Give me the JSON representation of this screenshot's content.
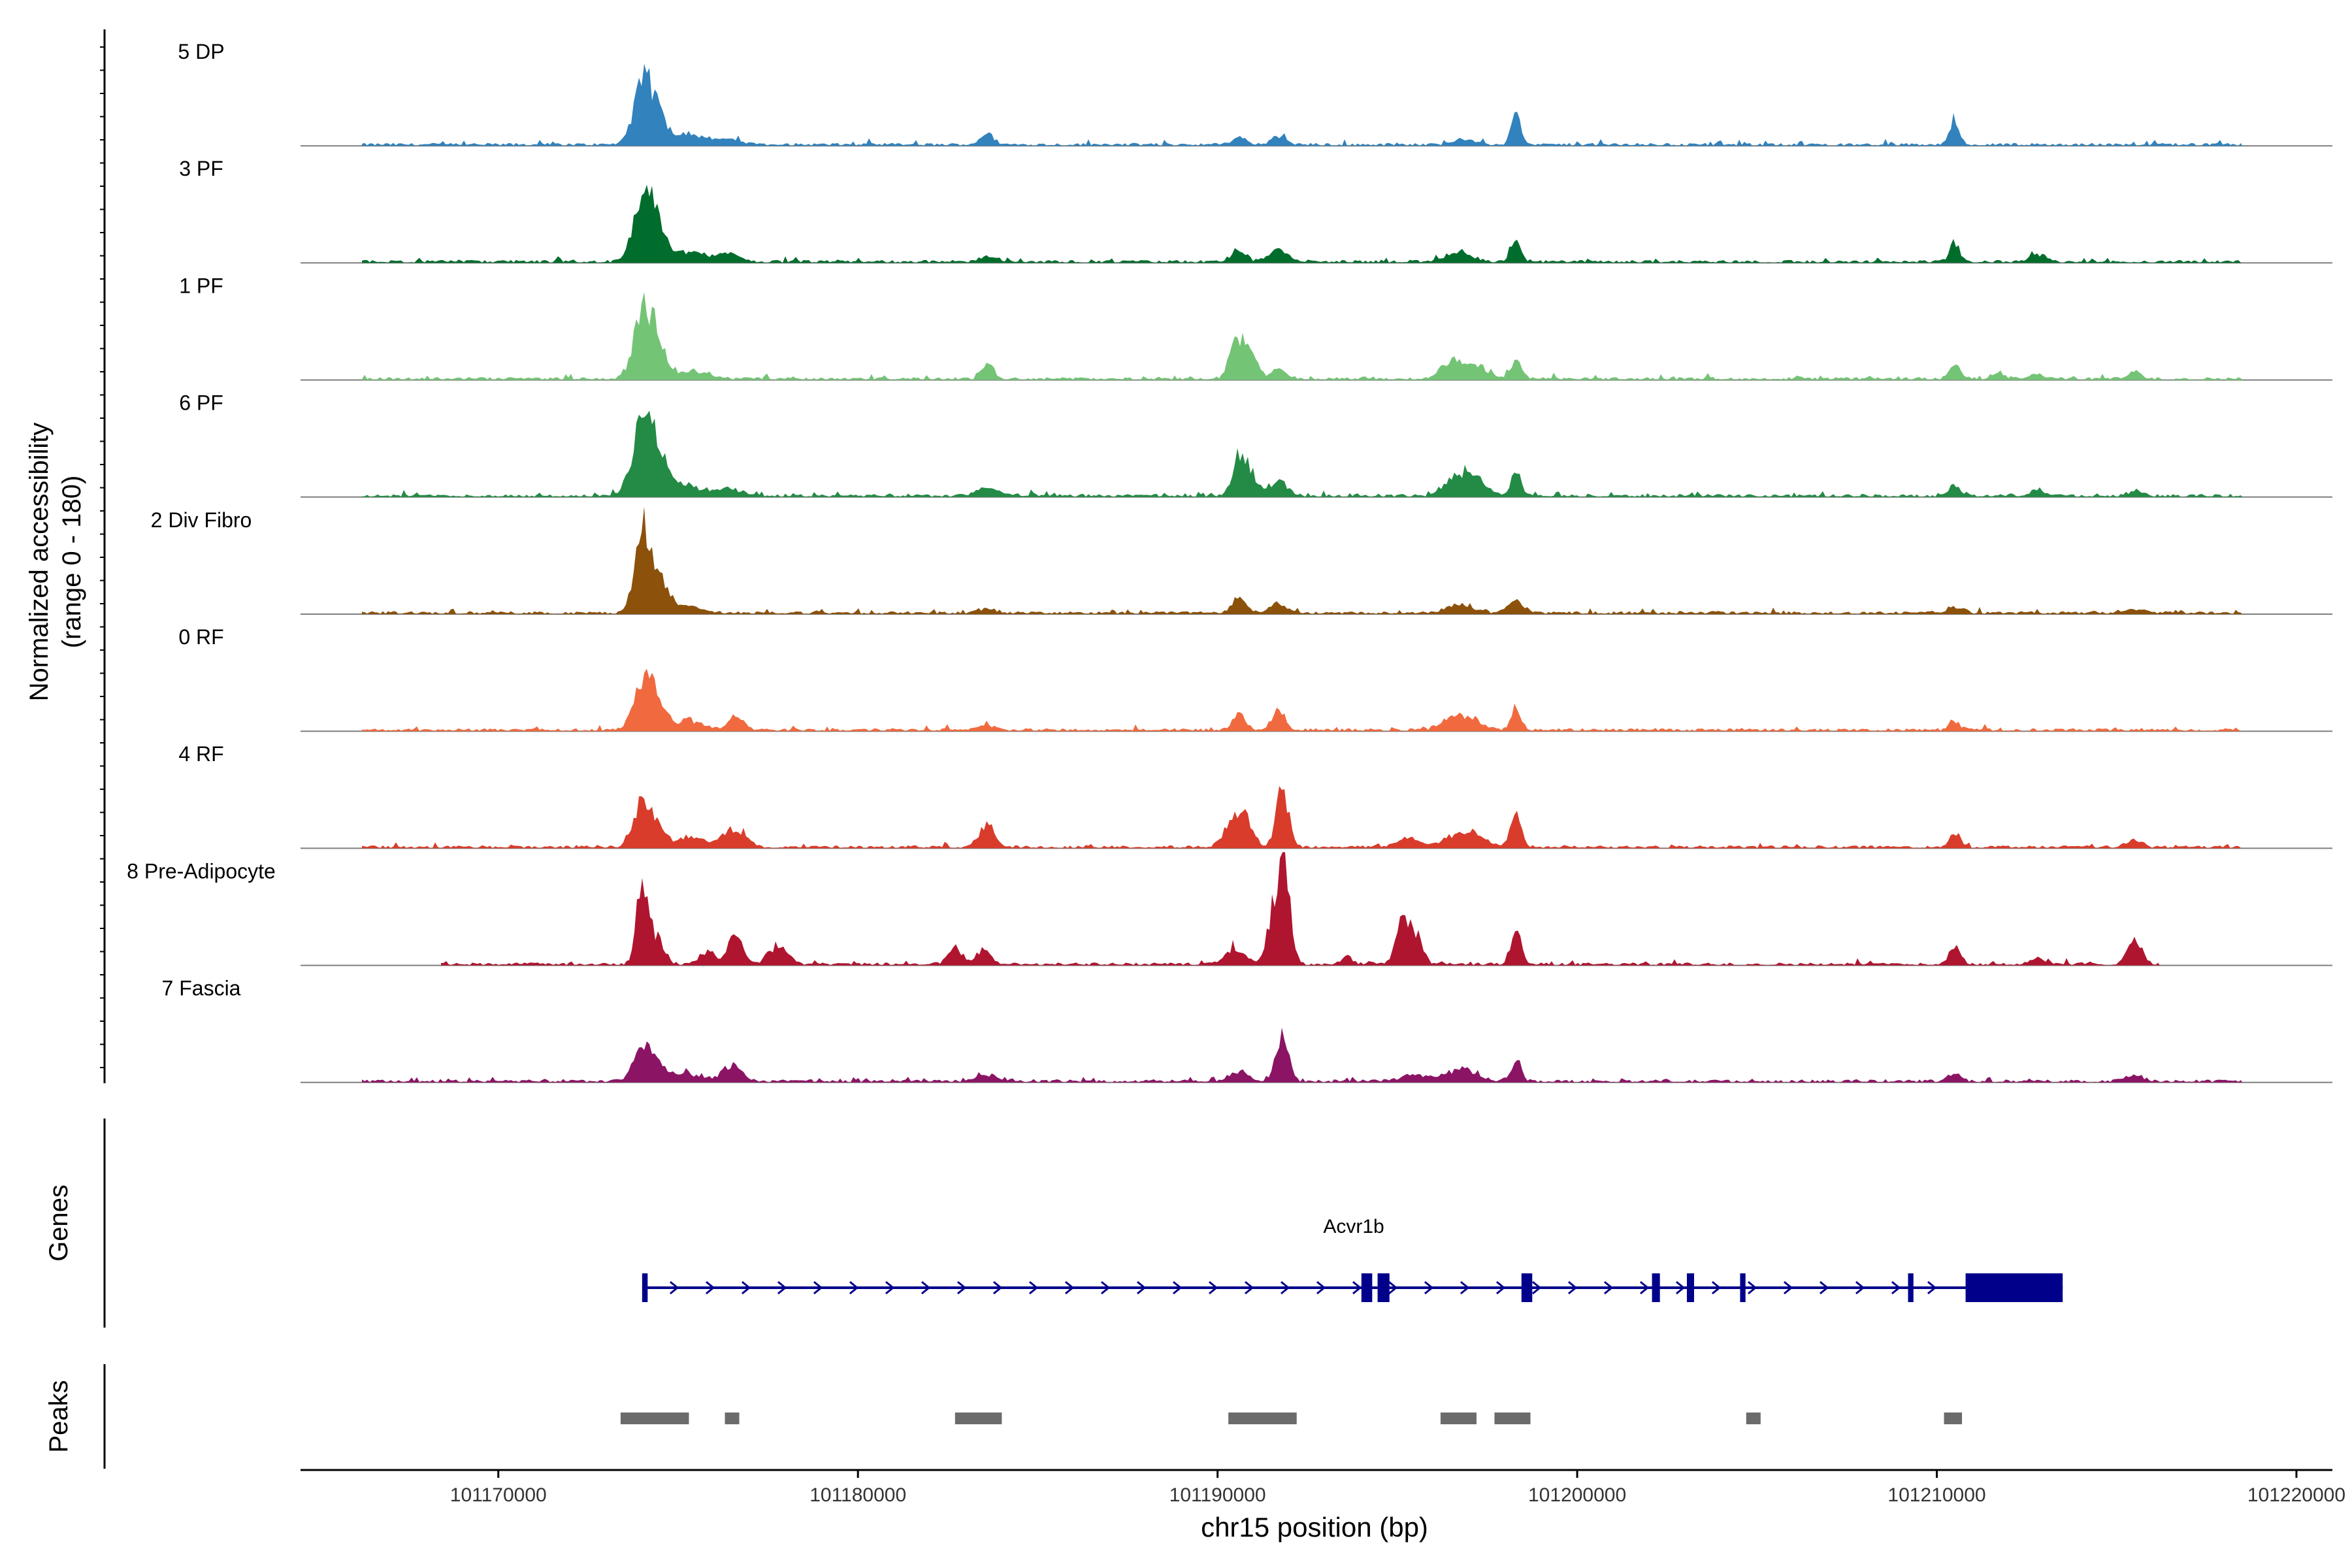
{
  "chart_data": {
    "type": "area",
    "title": "",
    "ylabel": "Normalized accessibility",
    "ylabel_range": "(range 0 - 180)",
    "y_range": [
      0,
      180
    ],
    "xlabel": "chr15 position (bp)",
    "xlim": [
      101164500,
      101221000
    ],
    "x_ticks": [
      101170000,
      101180000,
      101190000,
      101200000,
      101210000,
      101220000
    ],
    "x_tick_labels": [
      "101170000",
      "101180000",
      "101190000",
      "101200000",
      "101210000",
      "101220000"
    ],
    "tracks": [
      {
        "name": "5 DP",
        "color": "#3182BD",
        "range": [
          101166200,
          101218500
        ],
        "peaks": [
          [
            101174000,
            0.85,
            250
          ],
          [
            101174400,
            0.42,
            250
          ],
          [
            101175200,
            0.18,
            400
          ],
          [
            101176300,
            0.08,
            400
          ],
          [
            101183600,
            0.16,
            200
          ],
          [
            101190600,
            0.1,
            200
          ],
          [
            101191700,
            0.12,
            200
          ],
          [
            101196800,
            0.08,
            300
          ],
          [
            101198300,
            0.43,
            130
          ],
          [
            101210500,
            0.38,
            130
          ]
        ]
      },
      {
        "name": "3 PF",
        "color": "#006D2C",
        "range": [
          101166200,
          101218500
        ],
        "peaks": [
          [
            101174000,
            0.95,
            250
          ],
          [
            101174400,
            0.45,
            250
          ],
          [
            101175300,
            0.15,
            400
          ],
          [
            101176400,
            0.12,
            300
          ],
          [
            101183600,
            0.08,
            200
          ],
          [
            101190600,
            0.16,
            200
          ],
          [
            101191700,
            0.18,
            250
          ],
          [
            101196700,
            0.14,
            350
          ],
          [
            101198300,
            0.37,
            130
          ],
          [
            101210500,
            0.3,
            130
          ],
          [
            101212800,
            0.12,
            200
          ]
        ]
      },
      {
        "name": "1 PF",
        "color": "#74C476",
        "range": [
          101166200,
          101218500
        ],
        "peaks": [
          [
            101174000,
            0.9,
            250
          ],
          [
            101174400,
            0.5,
            250
          ],
          [
            101175400,
            0.12,
            400
          ],
          [
            101183600,
            0.26,
            150
          ],
          [
            101190500,
            0.6,
            180
          ],
          [
            101190900,
            0.45,
            180
          ],
          [
            101191700,
            0.15,
            200
          ],
          [
            101196500,
            0.25,
            300
          ],
          [
            101197200,
            0.2,
            300
          ],
          [
            101198300,
            0.28,
            150
          ],
          [
            101210500,
            0.23,
            150
          ],
          [
            101211700,
            0.08,
            200
          ],
          [
            101212800,
            0.07,
            200
          ],
          [
            101215500,
            0.1,
            200
          ]
        ]
      },
      {
        "name": "6 PF",
        "color": "#238B45",
        "range": [
          101166200,
          101218500
        ],
        "peaks": [
          [
            101174000,
            1.0,
            280
          ],
          [
            101174400,
            0.55,
            280
          ],
          [
            101175200,
            0.16,
            400
          ],
          [
            101176400,
            0.1,
            400
          ],
          [
            101183600,
            0.12,
            300
          ],
          [
            101190600,
            0.55,
            180
          ],
          [
            101190900,
            0.28,
            200
          ],
          [
            101191700,
            0.2,
            250
          ],
          [
            101196600,
            0.22,
            300
          ],
          [
            101197100,
            0.3,
            300
          ],
          [
            101198300,
            0.38,
            130
          ],
          [
            101210500,
            0.18,
            150
          ],
          [
            101212800,
            0.1,
            200
          ],
          [
            101215500,
            0.08,
            200
          ]
        ]
      },
      {
        "name": "2 Div Fibro",
        "color": "#8C510A",
        "range": [
          101166200,
          101218500
        ],
        "peaks": [
          [
            101174000,
            1.08,
            220
          ],
          [
            101174400,
            0.5,
            280
          ],
          [
            101175200,
            0.1,
            400
          ],
          [
            101183600,
            0.06,
            300
          ],
          [
            101190600,
            0.26,
            180
          ],
          [
            101191700,
            0.14,
            250
          ],
          [
            101196800,
            0.12,
            400
          ],
          [
            101198300,
            0.2,
            200
          ],
          [
            101210500,
            0.1,
            200
          ],
          [
            101215500,
            0.05,
            300
          ]
        ]
      },
      {
        "name": "0 RF",
        "color": "#F16A3F",
        "range": [
          101166200,
          101218500
        ],
        "peaks": [
          [
            101174000,
            0.68,
            250
          ],
          [
            101174400,
            0.4,
            250
          ],
          [
            101175300,
            0.15,
            400
          ],
          [
            101176600,
            0.22,
            200
          ],
          [
            101183600,
            0.08,
            200
          ],
          [
            101190600,
            0.25,
            180
          ],
          [
            101191700,
            0.34,
            150
          ],
          [
            101196600,
            0.18,
            350
          ],
          [
            101197100,
            0.12,
            300
          ],
          [
            101198300,
            0.36,
            130
          ],
          [
            101210500,
            0.15,
            150
          ]
        ]
      },
      {
        "name": "4 RF",
        "color": "#D93C2B",
        "range": [
          101166200,
          101218500
        ],
        "peaks": [
          [
            101174000,
            0.6,
            250
          ],
          [
            101174400,
            0.25,
            250
          ],
          [
            101175300,
            0.15,
            400
          ],
          [
            101176400,
            0.22,
            220
          ],
          [
            101176800,
            0.2,
            200
          ],
          [
            101183600,
            0.33,
            200
          ],
          [
            101190400,
            0.35,
            250
          ],
          [
            101190800,
            0.36,
            200
          ],
          [
            101191800,
            0.88,
            170
          ],
          [
            101195300,
            0.14,
            300
          ],
          [
            101196600,
            0.18,
            350
          ],
          [
            101197200,
            0.15,
            300
          ],
          [
            101198300,
            0.55,
            150
          ],
          [
            101210500,
            0.2,
            150
          ],
          [
            101215500,
            0.12,
            200
          ]
        ]
      },
      {
        "name": "8 Pre-Adipocyte",
        "color": "#B01530",
        "range": [
          101168400,
          101216200
        ],
        "peaks": [
          [
            101174000,
            1.2,
            150
          ],
          [
            101174400,
            0.4,
            200
          ],
          [
            101175800,
            0.2,
            200
          ],
          [
            101176600,
            0.5,
            200
          ],
          [
            101177800,
            0.3,
            250
          ],
          [
            101182700,
            0.25,
            200
          ],
          [
            101183500,
            0.2,
            200
          ],
          [
            101190500,
            0.25,
            250
          ],
          [
            101191600,
            0.88,
            200
          ],
          [
            101191900,
            1.05,
            160
          ],
          [
            101193600,
            0.12,
            150
          ],
          [
            101195200,
            0.7,
            200
          ],
          [
            101195600,
            0.35,
            150
          ],
          [
            101198300,
            0.6,
            140
          ],
          [
            101210500,
            0.3,
            150
          ],
          [
            101212800,
            0.1,
            200
          ],
          [
            101215500,
            0.35,
            200
          ]
        ]
      },
      {
        "name": "7 Fascia",
        "color": "#8B1465",
        "range": [
          101166200,
          101218500
        ],
        "peaks": [
          [
            101174000,
            0.47,
            250
          ],
          [
            101174400,
            0.22,
            250
          ],
          [
            101175200,
            0.1,
            400
          ],
          [
            101176500,
            0.25,
            250
          ],
          [
            101183600,
            0.1,
            300
          ],
          [
            101190600,
            0.15,
            250
          ],
          [
            101191800,
            0.68,
            170
          ],
          [
            101195500,
            0.1,
            400
          ],
          [
            101196800,
            0.18,
            400
          ],
          [
            101198300,
            0.3,
            150
          ],
          [
            101210500,
            0.1,
            200
          ],
          [
            101215500,
            0.08,
            300
          ]
        ]
      }
    ],
    "genes": {
      "label": "Genes",
      "name": "Acvr1b",
      "start": 101174000,
      "end": 101213500,
      "strand": "+",
      "color": "#00008B",
      "exons": [
        [
          101174000,
          101174150
        ],
        [
          101174000,
          101174150
        ],
        [
          101194000,
          101194300
        ],
        [
          101194450,
          101194780
        ],
        [
          101198450,
          101198750
        ],
        [
          101202080,
          101202300
        ],
        [
          101203050,
          101203250
        ],
        [
          101204530,
          101204680
        ],
        [
          101209200,
          101209350
        ],
        [
          101210800,
          101213500
        ]
      ]
    },
    "peaks_track": {
      "label": "Peaks",
      "color": "#6B6B6B",
      "regions": [
        [
          101173400,
          101175300
        ],
        [
          101176300,
          101176700
        ],
        [
          101182700,
          101184000
        ],
        [
          101190300,
          101192200
        ],
        [
          101196200,
          101197200
        ],
        [
          101197700,
          101198700
        ],
        [
          101204700,
          101205100
        ],
        [
          101210200,
          101210700
        ]
      ]
    }
  }
}
